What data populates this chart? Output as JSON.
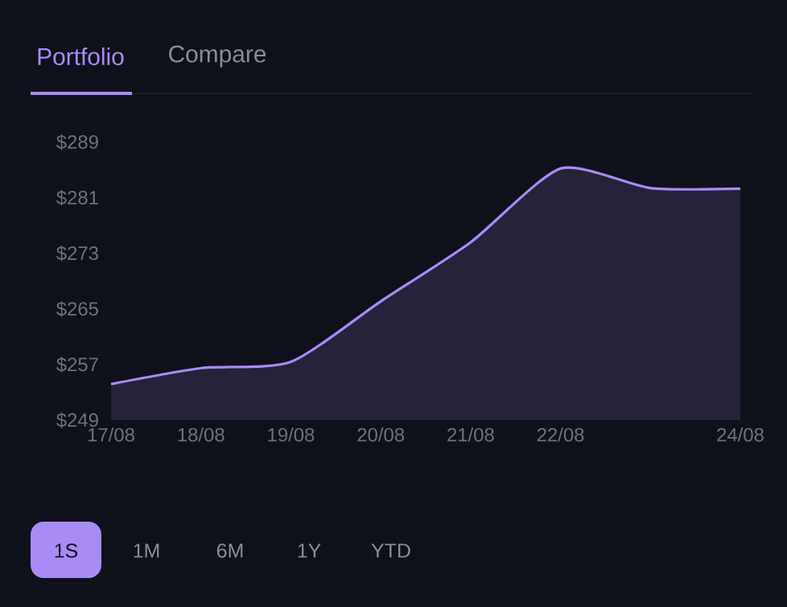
{
  "chart_data": {
    "type": "area",
    "categories": [
      "17/08",
      "18/08",
      "19/08",
      "20/08",
      "21/08",
      "22/08",
      null,
      "24/08"
    ],
    "values": [
      254.2,
      256.5,
      257.4,
      266.1,
      274.6,
      285.2,
      282.4,
      282.3
    ],
    "color": "#a98bf5",
    "ylim": [
      249,
      289
    ],
    "yticks": [
      {
        "value": 249,
        "label": "$249"
      },
      {
        "value": 257,
        "label": "$257"
      },
      {
        "value": 265,
        "label": "$265"
      },
      {
        "value": 273,
        "label": "$273"
      },
      {
        "value": 281,
        "label": "$281"
      },
      {
        "value": 289,
        "label": "$289"
      }
    ],
    "annotations": [
      "Portfolio",
      "Compare",
      "1S",
      "1M",
      "6M",
      "1Y",
      "YTD"
    ]
  }
}
